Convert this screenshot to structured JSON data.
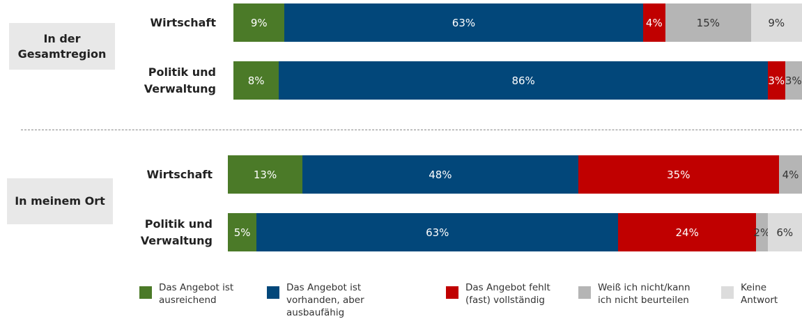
{
  "chart_data": {
    "type": "bar",
    "orientation": "horizontal",
    "stacked": true,
    "groups": [
      "In der Gesamtregion",
      "In meinem Ort"
    ],
    "categories": [
      "Wirtschaft",
      "Politik und Verwaltung",
      "Wirtschaft",
      "Politik und Verwaltung"
    ],
    "xlim": [
      0,
      100
    ],
    "series": [
      {
        "name": "Das Angebot ist ausreichend",
        "color": "#4b7a28",
        "values": [
          9,
          8,
          13,
          5
        ],
        "value_labels": [
          "9%",
          "8%",
          "13%",
          "5%"
        ]
      },
      {
        "name": "Das Angebot ist vorhanden, aber ausbaufähig",
        "color": "#02477a",
        "values": [
          63,
          86,
          48,
          63
        ],
        "value_labels": [
          "63%",
          "86%",
          "48%",
          "63%"
        ]
      },
      {
        "name": "Das Angebot fehlt (fast) vollständig",
        "color": "#c00000",
        "values": [
          4,
          3,
          35,
          24
        ],
        "value_labels": [
          "4%",
          "3%",
          "35%",
          "24%"
        ]
      },
      {
        "name": "Weiß ich nicht/kann ich nicht beurteilen",
        "color": "#b5b5b5",
        "values": [
          15,
          3,
          4,
          2
        ],
        "value_labels": [
          "15%",
          "3%",
          "4%",
          "2%"
        ]
      },
      {
        "name": "Keine Antwort",
        "color": "#dcdcdc",
        "values": [
          9,
          null,
          null,
          6
        ],
        "value_labels": [
          "9%",
          null,
          null,
          "6%"
        ]
      }
    ]
  }
}
